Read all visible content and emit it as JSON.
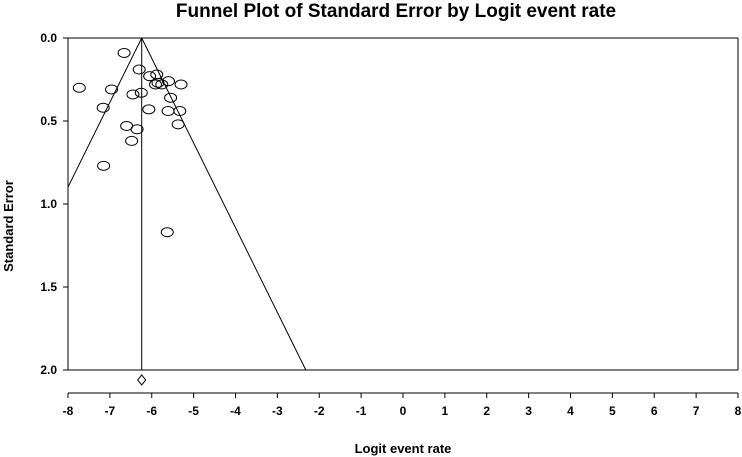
{
  "chart_data": {
    "type": "scatter",
    "title": "Funnel Plot of Standard Error by Logit event rate",
    "xlabel": "Logit event rate",
    "ylabel": "Standard Error",
    "xlim": [
      -8,
      8
    ],
    "ylim": [
      0,
      2
    ],
    "y_inverted": true,
    "x_ticks": [
      "-8",
      "-7",
      "-6",
      "-5",
      "-4",
      "-3",
      "-2",
      "-1",
      "0",
      "1",
      "2",
      "3",
      "4",
      "5",
      "6",
      "7",
      "8"
    ],
    "y_ticks": [
      "0.0",
      "0.5",
      "1.0",
      "1.5",
      "2.0"
    ],
    "grid": false,
    "summary_effect": -6.24,
    "funnel_lines": true,
    "summary_diamond": {
      "x": -6.24,
      "y": 2.06
    },
    "points": [
      {
        "x": -6.66,
        "y": 0.09
      },
      {
        "x": -7.73,
        "y": 0.3
      },
      {
        "x": -6.96,
        "y": 0.31
      },
      {
        "x": -7.16,
        "y": 0.42
      },
      {
        "x": -6.45,
        "y": 0.34
      },
      {
        "x": -6.25,
        "y": 0.33
      },
      {
        "x": -6.3,
        "y": 0.19
      },
      {
        "x": -6.05,
        "y": 0.23
      },
      {
        "x": -5.88,
        "y": 0.22
      },
      {
        "x": -5.85,
        "y": 0.27
      },
      {
        "x": -5.91,
        "y": 0.28
      },
      {
        "x": -5.76,
        "y": 0.28
      },
      {
        "x": -5.6,
        "y": 0.26
      },
      {
        "x": -5.3,
        "y": 0.28
      },
      {
        "x": -5.55,
        "y": 0.36
      },
      {
        "x": -6.07,
        "y": 0.43
      },
      {
        "x": -5.61,
        "y": 0.44
      },
      {
        "x": -5.33,
        "y": 0.44
      },
      {
        "x": -5.37,
        "y": 0.52
      },
      {
        "x": -6.6,
        "y": 0.53
      },
      {
        "x": -6.35,
        "y": 0.55
      },
      {
        "x": -6.48,
        "y": 0.62
      },
      {
        "x": -7.15,
        "y": 0.77
      },
      {
        "x": -5.63,
        "y": 1.17
      }
    ]
  }
}
